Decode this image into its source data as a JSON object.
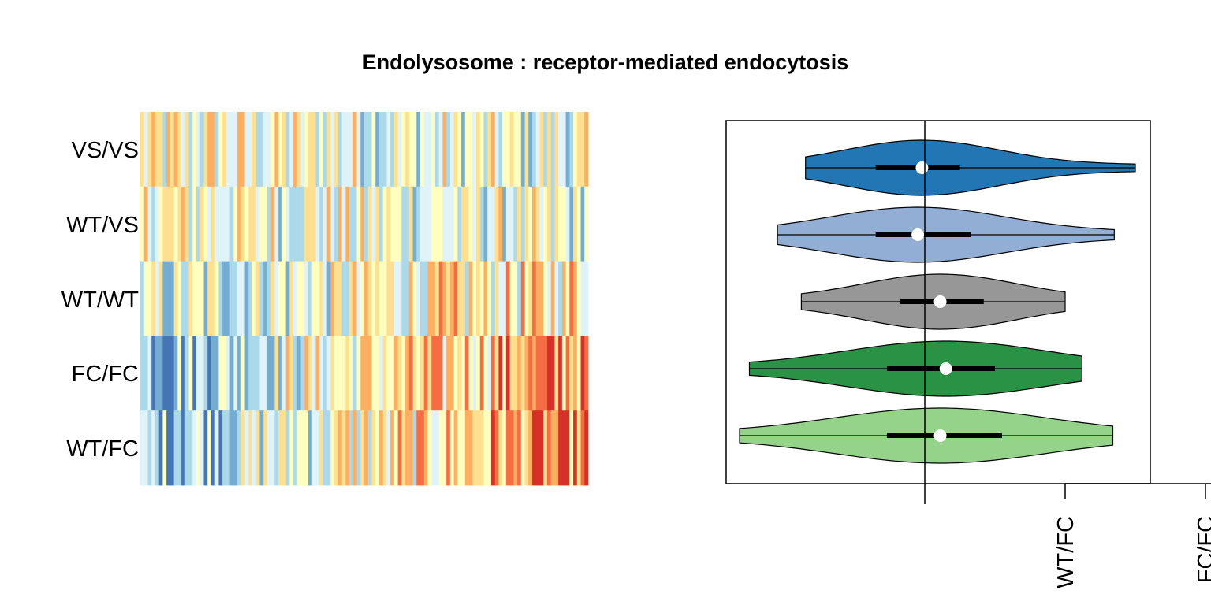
{
  "chart_data": [
    {
      "type": "heatmap",
      "title": "Endolysosome : receptor-mediated endocytosis",
      "rows": [
        "VS/VS",
        "WT/VS",
        "WT/WT",
        "FC/FC",
        "WT/FC"
      ],
      "n_columns": 120,
      "color_scale": [
        "#4575b4",
        "#74add1",
        "#abd9e9",
        "#e0f3f8",
        "#ffffbf",
        "#fee090",
        "#fdae61",
        "#f46d43",
        "#d73027"
      ],
      "column_sort": "ascending by FC/FC and WT/FC mean"
    },
    {
      "type": "violin",
      "orientation": "horizontal",
      "series": [
        {
          "name": "VS/VS",
          "color": "#2276b4",
          "min": -0.85,
          "q1": -0.35,
          "median": -0.02,
          "q3": 0.25,
          "max": 1.5
        },
        {
          "name": "WT/VS",
          "color": "#93aed5",
          "min": -1.05,
          "q1": -0.35,
          "median": -0.05,
          "q3": 0.33,
          "max": 1.35
        },
        {
          "name": "WT/WT",
          "color": "#979797",
          "min": -0.88,
          "q1": -0.18,
          "median": 0.11,
          "q3": 0.42,
          "max": 1.0
        },
        {
          "name": "FC/FC",
          "color": "#2a9244",
          "min": -1.25,
          "q1": -0.27,
          "median": 0.15,
          "q3": 0.5,
          "max": 1.12
        },
        {
          "name": "WT/FC",
          "color": "#95d38b",
          "min": -1.32,
          "q1": -0.27,
          "median": 0.11,
          "q3": 0.55,
          "max": 1.34
        }
      ],
      "reference_line": 0,
      "xlim": [
        -1.4,
        1.6
      ],
      "extra_axis_labels": [
        "WT/FC",
        "FC/FC"
      ]
    }
  ]
}
